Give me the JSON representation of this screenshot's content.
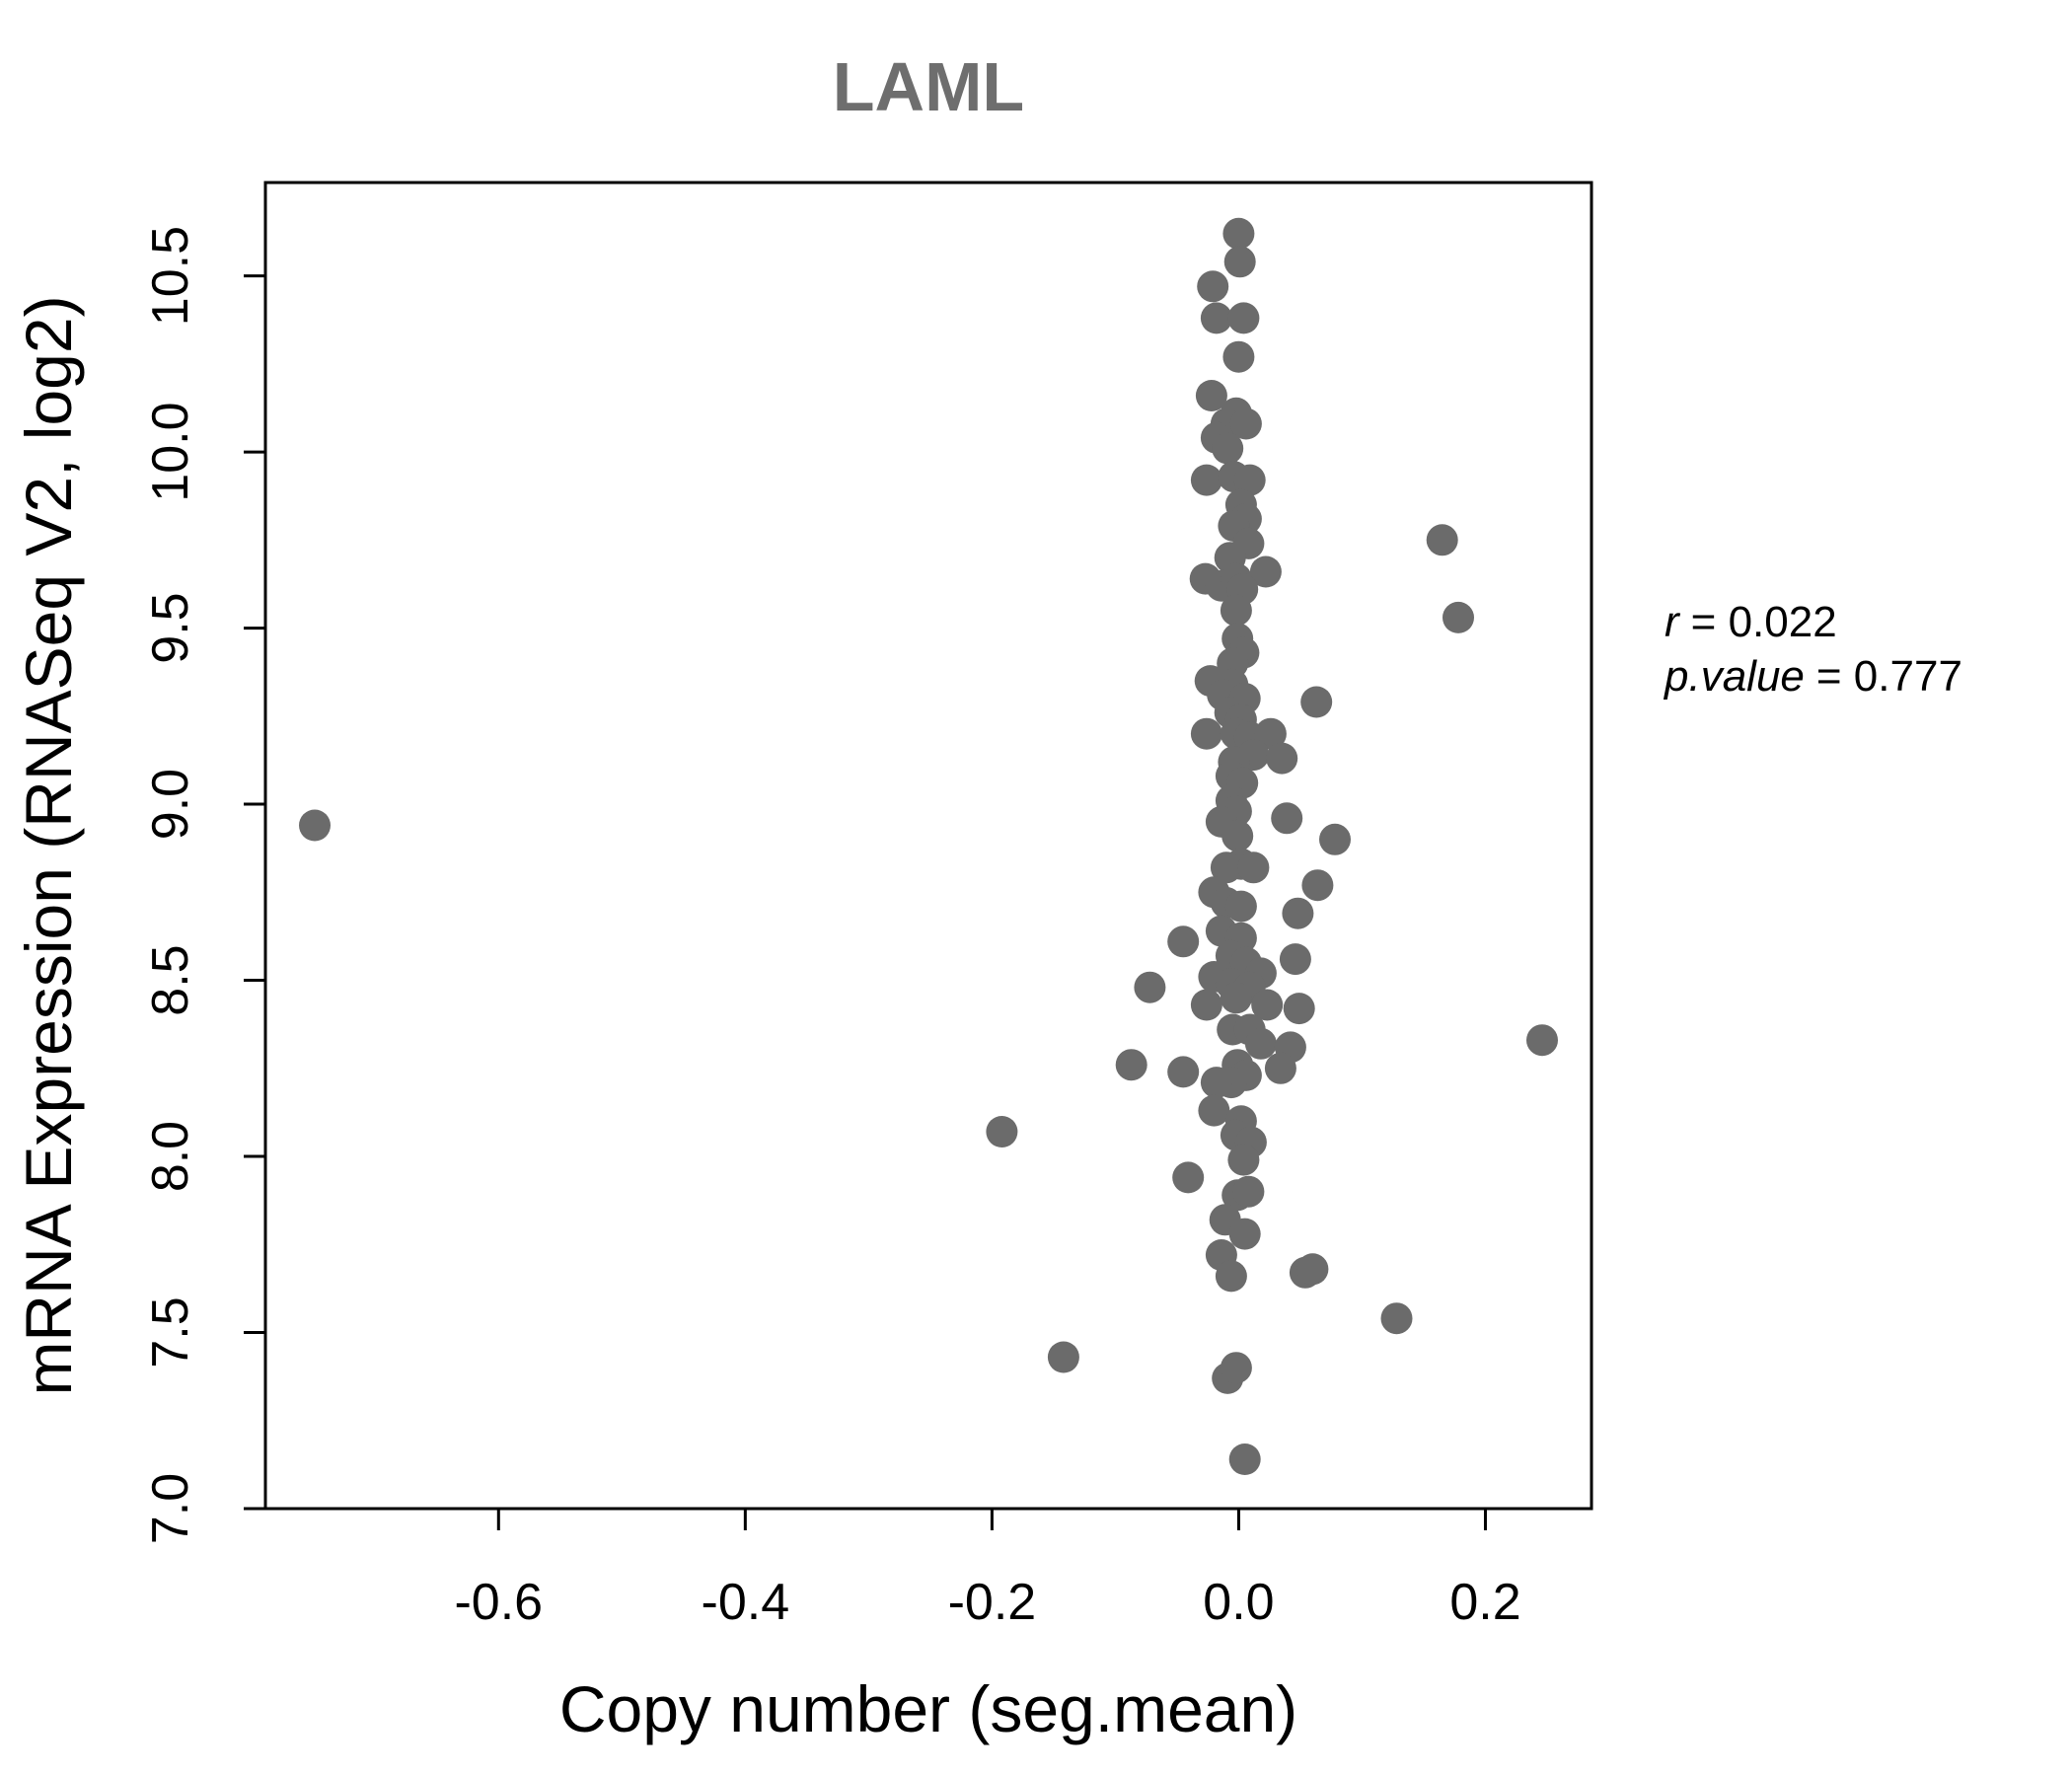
{
  "title": "LAML",
  "annotation": {
    "line1": {
      "var": "r",
      "eq": "= 0.022"
    },
    "line2": {
      "var": "p.value",
      "eq": "= 0.777"
    }
  },
  "chart_data": {
    "type": "scatter",
    "title": "LAML",
    "xlabel": "Copy number (seg.mean)",
    "ylabel": "mRNA Expression (RNASeq V2, log2)",
    "xlim": [
      -0.789,
      0.286
    ],
    "ylim": [
      7.0,
      10.765
    ],
    "xtick_values": [
      -0.6,
      -0.4,
      -0.2,
      0.0,
      0.2
    ],
    "xtick_labels": [
      "-0.6",
      "-0.4",
      "-0.2",
      "0.0",
      "0.2"
    ],
    "ytick_values": [
      7.0,
      7.5,
      8.0,
      8.5,
      9.0,
      9.5,
      10.0,
      10.5
    ],
    "ytick_labels": [
      "7.0",
      "7.5",
      "8.0",
      "8.5",
      "9.0",
      "9.5",
      "10.0",
      "10.5"
    ],
    "grid": false,
    "legend": false,
    "point_color": "#6b6b6b",
    "title_color": "#6e6e6e",
    "stats": {
      "r": 0.022,
      "p_value": 0.777
    },
    "points": [
      [
        -0.749,
        8.94
      ],
      [
        0.0,
        10.62
      ],
      [
        0.001,
        10.54
      ],
      [
        -0.021,
        10.47
      ],
      [
        -0.018,
        10.38
      ],
      [
        0.004,
        10.38
      ],
      [
        0.0,
        10.27
      ],
      [
        -0.022,
        10.16
      ],
      [
        -0.002,
        10.11
      ],
      [
        -0.01,
        10.08
      ],
      [
        0.006,
        10.08
      ],
      [
        -0.018,
        10.04
      ],
      [
        -0.009,
        10.01
      ],
      [
        -0.026,
        9.92
      ],
      [
        -0.004,
        9.93
      ],
      [
        0.009,
        9.92
      ],
      [
        0.002,
        9.85
      ],
      [
        0.006,
        9.81
      ],
      [
        -0.004,
        9.79
      ],
      [
        0.008,
        9.74
      ],
      [
        -0.007,
        9.7
      ],
      [
        -0.027,
        9.64
      ],
      [
        0.022,
        9.66
      ],
      [
        -0.014,
        9.62
      ],
      [
        -0.002,
        9.64
      ],
      [
        0.003,
        9.61
      ],
      [
        -0.002,
        9.55
      ],
      [
        -0.001,
        9.47
      ],
      [
        0.004,
        9.43
      ],
      [
        -0.005,
        9.4
      ],
      [
        -0.023,
        9.35
      ],
      [
        -0.005,
        9.34
      ],
      [
        -0.013,
        9.31
      ],
      [
        0.005,
        9.3
      ],
      [
        0.063,
        9.29
      ],
      [
        -0.007,
        9.26
      ],
      [
        0.002,
        9.24
      ],
      [
        -0.026,
        9.2
      ],
      [
        -0.002,
        9.2
      ],
      [
        0.009,
        9.19
      ],
      [
        0.026,
        9.2
      ],
      [
        0.012,
        9.14
      ],
      [
        0.035,
        9.13
      ],
      [
        -0.004,
        9.12
      ],
      [
        -0.006,
        9.08
      ],
      [
        0.003,
        9.06
      ],
      [
        -0.006,
        9.01
      ],
      [
        -0.002,
        8.98
      ],
      [
        -0.014,
        8.95
      ],
      [
        0.039,
        8.96
      ],
      [
        -0.001,
        8.91
      ],
      [
        0.078,
        8.9
      ],
      [
        0.002,
        8.83
      ],
      [
        -0.01,
        8.82
      ],
      [
        0.012,
        8.82
      ],
      [
        0.064,
        8.77
      ],
      [
        -0.02,
        8.75
      ],
      [
        -0.01,
        8.72
      ],
      [
        0.002,
        8.71
      ],
      [
        0.048,
        8.69
      ],
      [
        -0.045,
        8.61
      ],
      [
        -0.014,
        8.64
      ],
      [
        0.002,
        8.62
      ],
      [
        -0.006,
        8.57
      ],
      [
        0.006,
        8.55
      ],
      [
        0.046,
        8.56
      ],
      [
        0.018,
        8.52
      ],
      [
        -0.072,
        8.48
      ],
      [
        -0.02,
        8.51
      ],
      [
        -0.006,
        8.49
      ],
      [
        0.009,
        8.48
      ],
      [
        -0.026,
        8.43
      ],
      [
        -0.002,
        8.45
      ],
      [
        0.023,
        8.43
      ],
      [
        0.049,
        8.42
      ],
      [
        -0.005,
        8.36
      ],
      [
        0.009,
        8.36
      ],
      [
        0.018,
        8.32
      ],
      [
        0.042,
        8.31
      ],
      [
        -0.087,
        8.26
      ],
      [
        -0.045,
        8.24
      ],
      [
        0.034,
        8.25
      ],
      [
        -0.001,
        8.26
      ],
      [
        0.006,
        8.23
      ],
      [
        -0.006,
        8.21
      ],
      [
        -0.018,
        8.21
      ],
      [
        -0.02,
        8.13
      ],
      [
        0.002,
        8.1
      ],
      [
        -0.002,
        8.06
      ],
      [
        0.01,
        8.04
      ],
      [
        0.004,
        7.99
      ],
      [
        -0.041,
        7.94
      ],
      [
        -0.001,
        7.89
      ],
      [
        0.008,
        7.9
      ],
      [
        -0.011,
        7.82
      ],
      [
        0.005,
        7.78
      ],
      [
        -0.014,
        7.72
      ],
      [
        -0.006,
        7.66
      ],
      [
        0.054,
        7.67
      ],
      [
        0.06,
        7.68
      ],
      [
        -0.192,
        8.07
      ],
      [
        -0.142,
        7.43
      ],
      [
        -0.009,
        7.37
      ],
      [
        -0.002,
        7.4
      ],
      [
        0.128,
        7.54
      ],
      [
        0.246,
        8.33
      ],
      [
        0.165,
        9.75
      ],
      [
        0.178,
        9.53
      ],
      [
        0.005,
        7.14
      ]
    ]
  }
}
